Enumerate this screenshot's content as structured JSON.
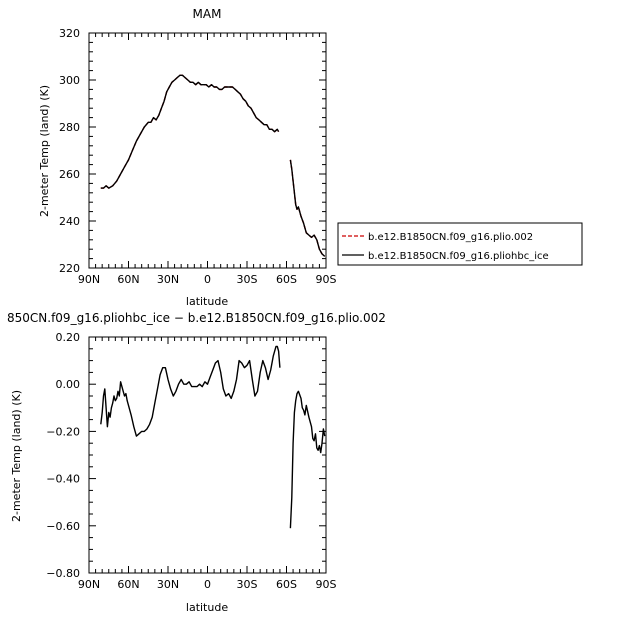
{
  "chart_data": [
    {
      "type": "line",
      "title": "MAM",
      "xlabel": "latitude",
      "ylabel": "2-meter Temp (land) (K)",
      "xlim": [
        90,
        -90
      ],
      "ylim": [
        220,
        320
      ],
      "x_ticks": [
        90,
        60,
        30,
        0,
        -30,
        -60,
        -90
      ],
      "x_tick_labels": [
        "90N",
        "60N",
        "30N",
        "0",
        "30S",
        "60S",
        "90S"
      ],
      "y_ticks": [
        220,
        240,
        260,
        280,
        300,
        320
      ],
      "y_tick_labels": [
        "220",
        "240",
        "260",
        "280",
        "300",
        "320"
      ],
      "legend_position": "right",
      "series": [
        {
          "name": "b.e12.B1850CN.f09_g16.plio.002",
          "color": "#cc0000",
          "dash": "dashed",
          "segments": [
            {
              "x": [
                81,
                79,
                77,
                75,
                72,
                69,
                66,
                63,
                60,
                57,
                54,
                51,
                48,
                45,
                43,
                41,
                39,
                37,
                35,
                33,
                31,
                29,
                27,
                25,
                23,
                21,
                19,
                17,
                15,
                13,
                11,
                9,
                7,
                5,
                3,
                1,
                -1,
                -3,
                -5,
                -7,
                -9,
                -11,
                -13,
                -15,
                -17,
                -19,
                -21,
                -23,
                -25,
                -27,
                -29,
                -31,
                -33,
                -35,
                -37,
                -39,
                -41,
                -43,
                -45,
                -47,
                -49,
                -51,
                -53,
                -54
              ],
              "y": [
                254,
                254,
                255,
                254,
                255,
                257,
                260,
                263,
                266,
                270,
                274,
                277,
                280,
                282,
                282,
                284,
                283,
                285,
                288,
                291,
                295,
                297,
                299,
                300,
                301,
                302,
                302,
                301,
                300,
                299,
                299,
                298,
                299,
                298,
                298,
                298,
                297,
                298,
                297,
                297,
                296,
                296,
                297,
                297,
                297,
                297,
                296,
                295,
                294,
                292,
                291,
                289,
                288,
                286,
                284,
                283,
                282,
                281,
                281,
                279,
                279,
                278,
                279,
                278
              ]
            },
            {
              "x": [
                -63,
                -64,
                -65,
                -66,
                -67,
                -68,
                -69,
                -71,
                -73,
                -75,
                -77,
                -79,
                -81,
                -83,
                -85,
                -87,
                -89
              ],
              "y": [
                266,
                262,
                257,
                252,
                247,
                245,
                246,
                242,
                239,
                235,
                234,
                233,
                234,
                232,
                228,
                226,
                225
              ]
            }
          ]
        },
        {
          "name": "b.e12.B1850CN.f09_g16.pliohbc_ice",
          "color": "#000000",
          "dash": "solid",
          "segments": [
            {
              "x": [
                81,
                79,
                77,
                75,
                72,
                69,
                66,
                63,
                60,
                57,
                54,
                51,
                48,
                45,
                43,
                41,
                39,
                37,
                35,
                33,
                31,
                29,
                27,
                25,
                23,
                21,
                19,
                17,
                15,
                13,
                11,
                9,
                7,
                5,
                3,
                1,
                -1,
                -3,
                -5,
                -7,
                -9,
                -11,
                -13,
                -15,
                -17,
                -19,
                -21,
                -23,
                -25,
                -27,
                -29,
                -31,
                -33,
                -35,
                -37,
                -39,
                -41,
                -43,
                -45,
                -47,
                -49,
                -51,
                -53,
                -54
              ],
              "y": [
                254,
                254,
                255,
                254,
                255,
                257,
                260,
                263,
                266,
                270,
                274,
                277,
                280,
                282,
                282,
                284,
                283,
                285,
                288,
                291,
                295,
                297,
                299,
                300,
                301,
                302,
                302,
                301,
                300,
                299,
                299,
                298,
                299,
                298,
                298,
                298,
                297,
                298,
                297,
                297,
                296,
                296,
                297,
                297,
                297,
                297,
                296,
                295,
                294,
                292,
                291,
                289,
                288,
                286,
                284,
                283,
                282,
                281,
                281,
                279,
                279,
                278,
                279,
                278
              ]
            },
            {
              "x": [
                -63,
                -64,
                -65,
                -66,
                -67,
                -68,
                -69,
                -71,
                -73,
                -75,
                -77,
                -79,
                -81,
                -83,
                -85,
                -87,
                -89
              ],
              "y": [
                266,
                262,
                257,
                252,
                247,
                245,
                246,
                242,
                239,
                235,
                234,
                233,
                234,
                232,
                228,
                226,
                225
              ]
            }
          ]
        }
      ]
    },
    {
      "type": "line",
      "title": "850CN.f09_g16.pliohbc_ice − b.e12.B1850CN.f09_g16.plio.002",
      "xlabel": "latitude",
      "ylabel": "2-meter Temp (land) (K)",
      "xlim": [
        90,
        -90
      ],
      "ylim": [
        -0.8,
        0.2
      ],
      "x_ticks": [
        90,
        60,
        30,
        0,
        -30,
        -60,
        -90
      ],
      "x_tick_labels": [
        "90N",
        "60N",
        "30N",
        "0",
        "30S",
        "60S",
        "90S"
      ],
      "y_ticks": [
        -0.8,
        -0.6,
        -0.4,
        -0.2,
        0.0,
        0.2
      ],
      "y_tick_labels": [
        "−0.80",
        "−0.60",
        "−0.40",
        "−0.20",
        "0.00",
        "0.20"
      ],
      "series": [
        {
          "color": "#000000",
          "dash": "solid",
          "segments": [
            {
              "x": [
                81,
                80,
                79,
                78,
                77,
                76,
                75,
                74,
                73,
                72,
                71,
                70,
                69,
                68,
                67,
                66,
                65,
                64,
                63,
                62,
                61,
                60,
                58,
                56,
                54,
                52,
                50,
                48,
                46,
                44,
                42,
                40,
                38,
                36,
                34,
                32,
                30,
                28,
                26,
                24,
                22,
                20,
                18,
                16,
                14,
                12,
                10,
                8,
                6,
                4,
                2,
                0,
                -2,
                -4,
                -6,
                -8,
                -10,
                -12,
                -14,
                -16,
                -18,
                -20,
                -22,
                -24,
                -26,
                -28,
                -30,
                -32,
                -34,
                -36,
                -38,
                -40,
                -42,
                -44,
                -46,
                -48,
                -50,
                -52,
                -53,
                -54,
                -55
              ],
              "y": [
                -0.17,
                -0.12,
                -0.05,
                -0.02,
                -0.1,
                -0.18,
                -0.12,
                -0.14,
                -0.1,
                -0.08,
                -0.05,
                -0.07,
                -0.06,
                -0.03,
                -0.05,
                0.01,
                -0.01,
                -0.03,
                -0.05,
                -0.04,
                -0.07,
                -0.09,
                -0.13,
                -0.18,
                -0.22,
                -0.21,
                -0.2,
                -0.2,
                -0.19,
                -0.17,
                -0.14,
                -0.08,
                -0.02,
                0.04,
                0.07,
                0.07,
                0.02,
                -0.02,
                -0.05,
                -0.03,
                0.0,
                0.02,
                0.0,
                0.0,
                0.01,
                -0.01,
                -0.01,
                -0.01,
                0.0,
                -0.01,
                0.01,
                0.0,
                0.03,
                0.06,
                0.09,
                0.1,
                0.05,
                -0.02,
                -0.05,
                -0.04,
                -0.06,
                -0.03,
                0.02,
                0.1,
                0.09,
                0.07,
                0.08,
                0.1,
                0.02,
                -0.05,
                -0.03,
                0.05,
                0.1,
                0.07,
                0.02,
                0.06,
                0.12,
                0.16,
                0.16,
                0.14,
                0.07
              ]
            },
            {
              "x": [
                -63,
                -64,
                -65,
                -66,
                -67,
                -68,
                -69,
                -71,
                -72,
                -73,
                -74,
                -75,
                -77,
                -79,
                -80,
                -81,
                -82,
                -83,
                -84,
                -85,
                -86,
                -87,
                -88,
                -89
              ],
              "y": [
                -0.61,
                -0.48,
                -0.25,
                -0.12,
                -0.07,
                -0.04,
                -0.03,
                -0.06,
                -0.1,
                -0.11,
                -0.13,
                -0.09,
                -0.14,
                -0.18,
                -0.23,
                -0.24,
                -0.21,
                -0.27,
                -0.28,
                -0.26,
                -0.29,
                -0.25,
                -0.19,
                -0.22
              ]
            }
          ]
        }
      ]
    }
  ]
}
